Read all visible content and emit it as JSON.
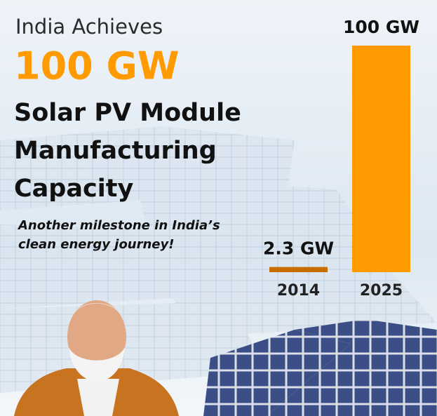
{
  "chart_data": {
    "type": "bar",
    "pretitle": "India Achieves",
    "title": "100 GW",
    "title_lines": [
      "Solar PV Module",
      "Manufacturing",
      "Capacity"
    ],
    "subtitle_lines": [
      "Another milestone in India’s",
      "clean energy journey!"
    ],
    "categories": [
      "2014",
      "2025"
    ],
    "values": [
      2.3,
      100
    ],
    "value_labels": [
      "2.3 GW",
      "100 GW"
    ],
    "colors": [
      "#c96c00",
      "#ff9a00"
    ]
  }
}
